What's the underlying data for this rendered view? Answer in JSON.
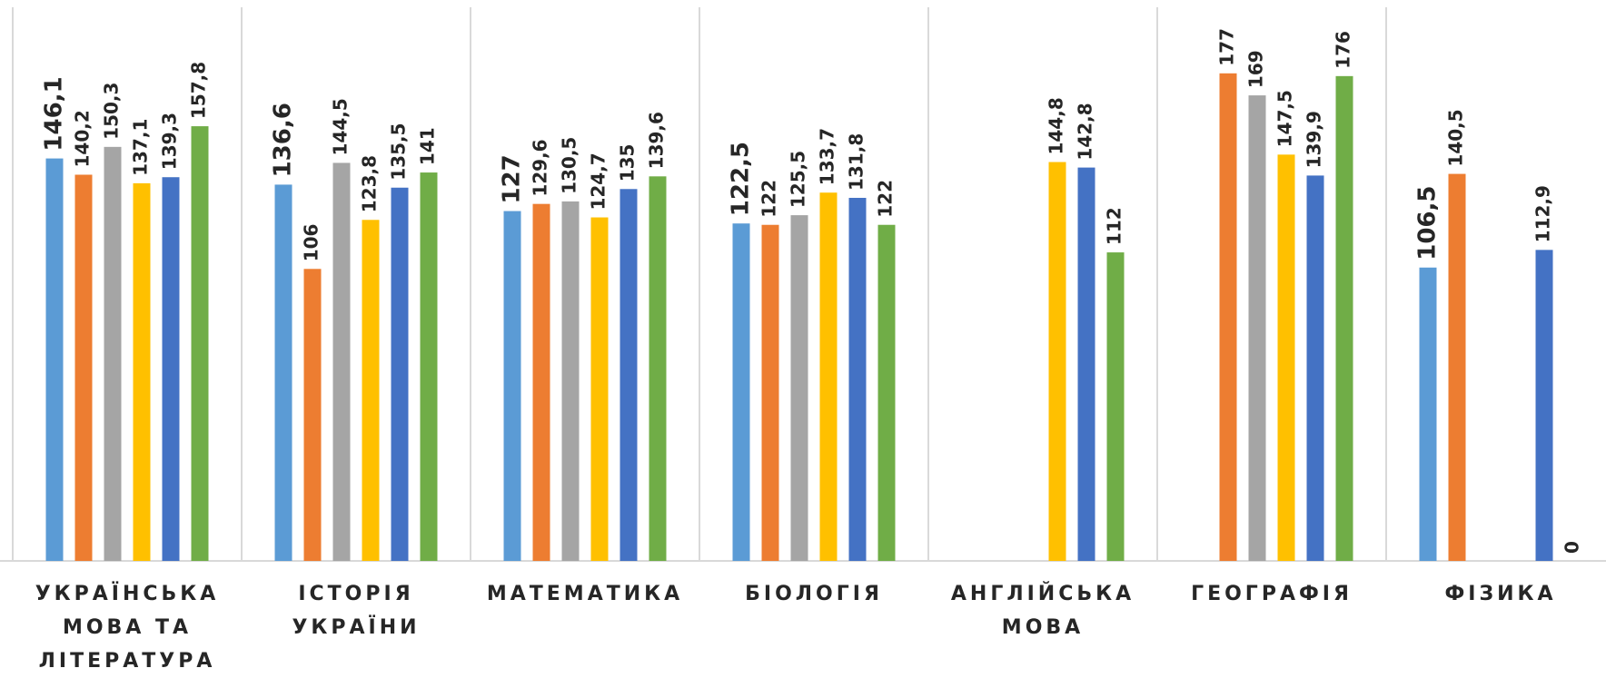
{
  "chart_data": {
    "type": "bar",
    "categories": [
      "УКРАЇНСЬКА МОВА ТА ЛІТЕРАТУРА",
      "ІСТОРІЯ УКРАЇНИ",
      "МАТЕМАТИКА",
      "БІОЛОГІЯ",
      "АНГЛІЙСЬКА МОВА",
      "ГЕОГРАФІЯ",
      "ФІЗИКА"
    ],
    "ylim": [
      0,
      200
    ],
    "series": [
      {
        "color": "#5b9bd5",
        "values": [
          146.1,
          136.6,
          127,
          122.5,
          null,
          null,
          106.5
        ],
        "value_labels": [
          "146,1",
          "136,6",
          "127",
          "122,5",
          null,
          null,
          "106,5"
        ]
      },
      {
        "color": "#ed7d31",
        "values": [
          140.2,
          106,
          129.6,
          122,
          null,
          177,
          140.5
        ],
        "value_labels": [
          "140,2",
          "106",
          "129,6",
          "122",
          null,
          "177",
          "140,5"
        ]
      },
      {
        "color": "#a5a5a5",
        "values": [
          150.3,
          144.5,
          130.5,
          125.5,
          null,
          169,
          null
        ],
        "value_labels": [
          "150,3",
          "144,5",
          "130,5",
          "125,5",
          null,
          "169",
          null
        ]
      },
      {
        "color": "#ffc000",
        "values": [
          137.1,
          123.8,
          124.7,
          133.7,
          144.8,
          147.5,
          null
        ],
        "value_labels": [
          "137,1",
          "123,8",
          "124,7",
          "133,7",
          "144,8",
          "147,5",
          null
        ]
      },
      {
        "color": "#4472c4",
        "values": [
          139.3,
          135.5,
          135,
          131.8,
          142.8,
          139.9,
          112.9
        ],
        "value_labels": [
          "139,3",
          "135,5",
          "135",
          "131,8",
          "142,8",
          "139,9",
          "112,9"
        ]
      },
      {
        "color": "#70ad47",
        "values": [
          157.8,
          141,
          139.6,
          122,
          112,
          176,
          0
        ],
        "value_labels": [
          "157,8",
          "141",
          "139,6",
          "122",
          "112",
          "176",
          "0"
        ]
      }
    ]
  }
}
